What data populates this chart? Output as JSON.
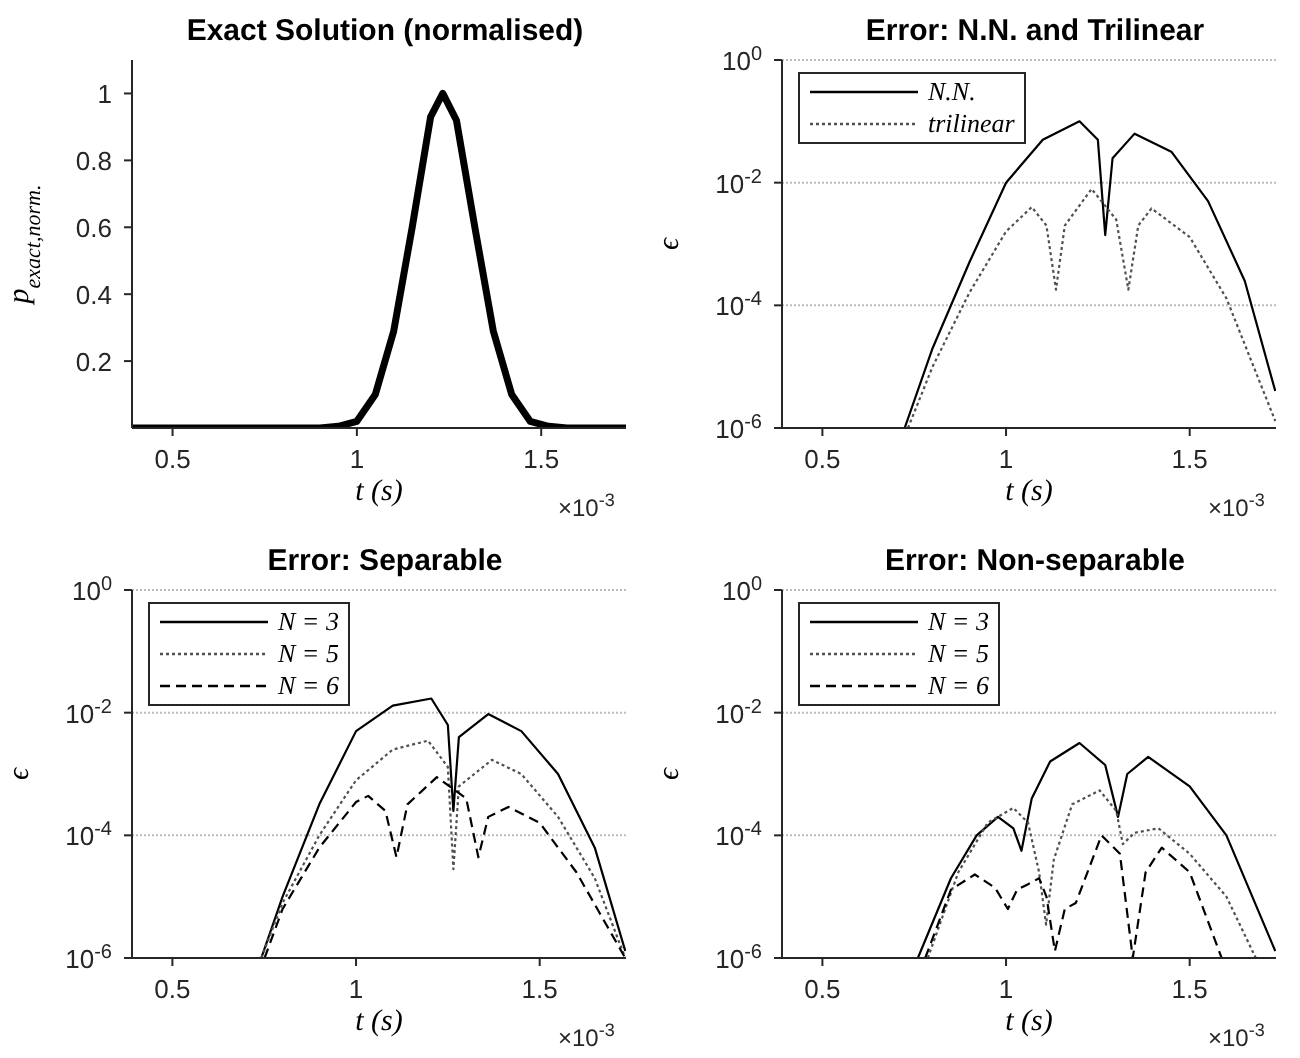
{
  "chart_data": [
    {
      "type": "line",
      "title": "Exact Solution (normalised)",
      "xlabel": "t (s)",
      "ylabel": "p$_{exact,norm.}$",
      "xlim": [
        0.39,
        1.73
      ],
      "xticks": [
        0.5,
        1,
        1.5
      ],
      "ylim": [
        0,
        1.1
      ],
      "yticks": [
        0.2,
        0.4,
        0.6,
        0.8,
        1
      ],
      "annotations": [
        "×10$^{-3}$"
      ],
      "series": [
        {
          "color": "#000000",
          "line_style": "solid",
          "x": [
            0.39,
            0.9,
            0.95,
            1.0,
            1.05,
            1.1,
            1.15,
            1.2,
            1.233,
            1.27,
            1.32,
            1.37,
            1.42,
            1.47,
            1.52,
            1.57,
            1.73
          ],
          "values": [
            0,
            0,
            0.005,
            0.02,
            0.1,
            0.29,
            0.6,
            0.93,
            1,
            0.92,
            0.6,
            0.29,
            0.1,
            0.02,
            0.005,
            0,
            0
          ]
        }
      ]
    },
    {
      "type": "line",
      "title": "Error: N.N. and Trilinear",
      "xlabel": "t (s)",
      "ylabel": "ϵ",
      "xlim": [
        0.39,
        1.735
      ],
      "xticks": [
        0.5,
        1,
        1.5
      ],
      "ylim": [
        1e-06,
        1
      ],
      "yticks": [
        {
          "value": 1e-06,
          "label": "10$^{-6}$"
        },
        {
          "value": 0.0001,
          "label": "10$^{-4}$"
        },
        {
          "value": 0.01,
          "label": "10$^{-2}$"
        },
        {
          "value": 1,
          "label": "10$^{0}$"
        }
      ],
      "log": true,
      "grid": "y",
      "legend": "top left",
      "annotations": [
        "×10$^{-3}$"
      ],
      "series": [
        {
          "name": "N.N.",
          "color": "#000000",
          "line_style": "solid",
          "x": [
            0.724,
            0.8,
            0.9,
            1.0,
            1.1,
            1.2,
            1.25,
            1.27,
            1.29,
            1.35,
            1.45,
            1.55,
            1.65,
            1.733
          ],
          "values": [
            1e-06,
            2e-05,
            0.0005,
            0.01,
            0.05,
            0.1,
            0.05,
            0.0014,
            0.025,
            0.063,
            0.032,
            0.005,
            0.00025,
            4e-06
          ]
        },
        {
          "name": "trilinear",
          "color": "#505050",
          "line_style": "dotted",
          "x": [
            0.733,
            0.8,
            0.9,
            1.0,
            1.07,
            1.11,
            1.136,
            1.16,
            1.233,
            1.3,
            1.333,
            1.36,
            1.396,
            1.5,
            1.6,
            1.733
          ],
          "values": [
            1e-06,
            1e-05,
            0.00016,
            0.0016,
            0.004,
            0.002,
            0.00018,
            0.002,
            0.0079,
            0.0025,
            0.00018,
            0.002,
            0.0038,
            0.0013,
            0.00013,
            1.3e-06
          ]
        }
      ]
    },
    {
      "type": "line",
      "title": "Error: Separable",
      "xlabel": "t (s)",
      "ylabel": "ϵ",
      "xlim": [
        0.39,
        1.735
      ],
      "xticks": [
        0.5,
        1,
        1.5
      ],
      "ylim": [
        1e-06,
        1
      ],
      "yticks": [
        {
          "value": 1e-06,
          "label": "10$^{-6}$"
        },
        {
          "value": 0.0001,
          "label": "10$^{-4}$"
        },
        {
          "value": 0.01,
          "label": "10$^{-2}$"
        },
        {
          "value": 1,
          "label": "10$^{0}$"
        }
      ],
      "log": true,
      "grid": "y",
      "legend": "top left",
      "annotations": [
        "×10$^{-3}$"
      ],
      "series": [
        {
          "name": "N = 3",
          "color": "#000000",
          "line_style": "solid",
          "x": [
            0.742,
            0.8,
            0.9,
            1.0,
            1.1,
            1.205,
            1.25,
            1.265,
            1.28,
            1.36,
            1.45,
            1.55,
            1.65,
            1.733
          ],
          "values": [
            1e-06,
            1e-05,
            0.00032,
            0.005,
            0.013,
            0.017,
            0.0063,
            0.00025,
            0.004,
            0.0095,
            0.005,
            0.001,
            6.3e-05,
            1.3e-06
          ]
        },
        {
          "name": "N = 5",
          "color": "#505050",
          "line_style": "dotted",
          "x": [
            0.742,
            0.8,
            0.9,
            1.0,
            1.1,
            1.196,
            1.25,
            1.265,
            1.28,
            1.37,
            1.45,
            1.55,
            1.65,
            1.733
          ],
          "values": [
            1e-06,
            7.9e-06,
            0.0001,
            0.00079,
            0.0025,
            0.0035,
            0.0013,
            2.8e-05,
            0.00063,
            0.0017,
            0.001,
            0.0002,
            2e-05,
            1e-06
          ]
        },
        {
          "name": "N = 6",
          "color": "#000000",
          "line_style": "dashed",
          "x": [
            0.751,
            0.8,
            0.9,
            1.0,
            1.033,
            1.08,
            1.11,
            1.14,
            1.22,
            1.3,
            1.333,
            1.36,
            1.415,
            1.5,
            1.6,
            1.733
          ],
          "values": [
            1e-06,
            6.3e-06,
            6.3e-05,
            0.00035,
            0.00044,
            0.00025,
            4.4e-05,
            0.00032,
            0.00089,
            0.0004,
            4.4e-05,
            0.0002,
            0.00029,
            0.00016,
            2.5e-05,
            1e-06
          ]
        }
      ]
    },
    {
      "type": "line",
      "title": "Error: Non-separable",
      "xlabel": "t (s)",
      "ylabel": "ϵ",
      "xlim": [
        0.39,
        1.735
      ],
      "xticks": [
        0.5,
        1,
        1.5
      ],
      "ylim": [
        1e-06,
        1
      ],
      "yticks": [
        {
          "value": 1e-06,
          "label": "10$^{-6}$"
        },
        {
          "value": 0.0001,
          "label": "10$^{-4}$"
        },
        {
          "value": 0.01,
          "label": "10$^{-2}$"
        },
        {
          "value": 1,
          "label": "10$^{0}$"
        }
      ],
      "log": true,
      "grid": "y",
      "legend": "top left",
      "annotations": [
        "×10$^{-3}$"
      ],
      "series": [
        {
          "name": "N = 3",
          "color": "#000000",
          "line_style": "solid",
          "x": [
            0.76,
            0.85,
            0.92,
            0.978,
            1.02,
            1.042,
            1.07,
            1.12,
            1.2,
            1.27,
            1.305,
            1.33,
            1.387,
            1.5,
            1.6,
            1.733
          ],
          "values": [
            1e-06,
            2e-05,
            0.0001,
            0.0002,
            0.00013,
            5.6e-05,
            0.0004,
            0.0016,
            0.0032,
            0.0014,
            0.0002,
            0.001,
            0.0019,
            0.00063,
            0.0001,
            1.3e-06
          ]
        },
        {
          "name": "N = 5",
          "color": "#505050",
          "line_style": "dotted",
          "x": [
            0.787,
            0.87,
            0.95,
            1.02,
            1.06,
            1.09,
            1.109,
            1.13,
            1.18,
            1.255,
            1.3,
            1.318,
            1.35,
            1.415,
            1.5,
            1.6,
            1.68
          ],
          "values": [
            1e-06,
            2.5e-05,
            0.00016,
            0.00028,
            0.00016,
            2.5e-05,
            3.5e-06,
            4e-05,
            0.00032,
            0.00054,
            0.00025,
            7.2e-05,
            0.00011,
            0.00013,
            5e-05,
            1e-05,
            1e-06
          ]
        },
        {
          "name": "N = 6",
          "color": "#000000",
          "line_style": "dashed",
          "x": [
            0.78,
            0.85,
            0.915,
            0.97,
            1.005,
            1.03,
            1.06,
            1.09,
            1.11,
            1.133,
            1.16,
            1.19,
            1.26,
            1.31,
            1.345,
            1.38,
            1.424,
            1.5,
            1.587
          ],
          "values": [
            1e-06,
            1.3e-05,
            2.3e-05,
            1.4e-05,
            6.3e-06,
            1.3e-05,
            1.6e-05,
            2e-05,
            1e-05,
            1.3e-06,
            6.3e-06,
            7.9e-06,
            0.0001,
            5e-05,
            1e-06,
            2.5e-05,
            6.3e-05,
            2.5e-05,
            1e-06
          ]
        }
      ]
    }
  ]
}
